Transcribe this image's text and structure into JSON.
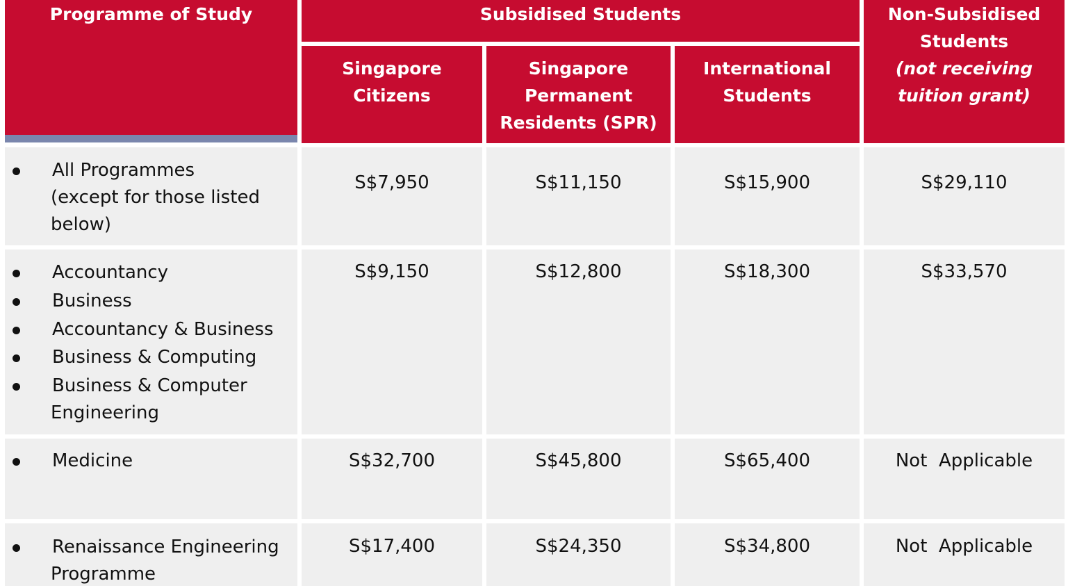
{
  "header": {
    "programme": "Programme of Study",
    "subsidised": "Subsidised Students",
    "citizens_line1": "Singapore",
    "citizens_line2": "Citizens",
    "spr_line1": "Singapore",
    "spr_line2": "Permanent",
    "spr_line3": "Residents (SPR)",
    "intl_line1": "International",
    "intl_line2": "Students",
    "nonsub_line1": "Non-Subsidised",
    "nonsub_line2": "Students",
    "nonsub_line3": "(not receiving",
    "nonsub_line4": "tuition grant)"
  },
  "rows": [
    {
      "programmes": [
        {
          "lines": [
            "All Programmes",
            "(except for those listed",
            "below)"
          ]
        }
      ],
      "citizens": "S$7,950",
      "spr": "S$11,150",
      "international": "S$15,900",
      "non_subsidised": "S$29,110"
    },
    {
      "programmes": [
        {
          "lines": [
            "Accountancy"
          ]
        },
        {
          "lines": [
            "Business"
          ]
        },
        {
          "lines": [
            "Accountancy & Business"
          ]
        },
        {
          "lines": [
            "Business & Computing"
          ]
        },
        {
          "lines": [
            "Business & Computer",
            "Engineering"
          ]
        }
      ],
      "citizens": "S$9,150",
      "spr": "S$12,800",
      "international": "S$18,300",
      "non_subsidised": "S$33,570"
    },
    {
      "programmes": [
        {
          "lines": [
            "Medicine"
          ]
        }
      ],
      "citizens": "S$32,700",
      "spr": "S$45,800",
      "international": "S$65,400",
      "non_subsidised": "Not  Applicable"
    },
    {
      "programmes": [
        {
          "lines": [
            "Renaissance Engineering",
            "Programme"
          ]
        }
      ],
      "citizens": "S$17,400",
      "spr": "S$24,350",
      "international": "S$34,800",
      "non_subsidised": "Not  Applicable"
    }
  ]
}
